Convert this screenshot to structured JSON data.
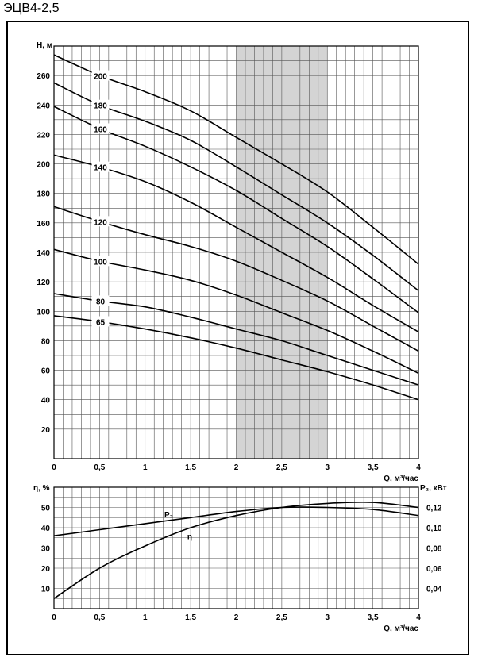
{
  "page_title": "ЭЦВ4-2,5",
  "chart_data": [
    {
      "type": "line",
      "ylabel": "Н, м",
      "xlabel": "Q, м³/час",
      "xlim": [
        0,
        4
      ],
      "ylim": [
        0,
        280
      ],
      "x_ticks": [
        0,
        0.5,
        1,
        1.5,
        2,
        2.5,
        3,
        3.5,
        4
      ],
      "x_tick_labels": [
        "0",
        "0,5",
        "1",
        "1,5",
        "2",
        "2,5",
        "3",
        "3,5",
        "4"
      ],
      "y_ticks": [
        20,
        40,
        60,
        80,
        100,
        120,
        140,
        160,
        180,
        200,
        220,
        240,
        260
      ],
      "y_tick_labels": [
        "20",
        "40",
        "60",
        "80",
        "100",
        "120",
        "140",
        "160",
        "180",
        "200",
        "220",
        "240",
        "260"
      ],
      "grid": true,
      "highlight_range": [
        2,
        3
      ],
      "x": [
        0,
        0.5,
        1,
        1.5,
        2,
        2.5,
        3,
        3.5,
        4
      ],
      "series": [
        {
          "name": "200",
          "values": [
            274,
            260,
            249,
            236,
            218,
            200,
            181,
            157,
            132
          ]
        },
        {
          "name": "180",
          "values": [
            255,
            240,
            229,
            216,
            198,
            179,
            160,
            138,
            114
          ]
        },
        {
          "name": "160",
          "values": [
            239,
            224,
            212,
            198,
            182,
            163,
            144,
            122,
            99
          ]
        },
        {
          "name": "140",
          "values": [
            206,
            198,
            188,
            174,
            157,
            140,
            123,
            104,
            86
          ]
        },
        {
          "name": "120",
          "values": [
            171,
            161,
            152,
            144,
            134,
            121,
            107,
            90,
            73
          ]
        },
        {
          "name": "100",
          "values": [
            142,
            134,
            128,
            121,
            111,
            99,
            87,
            73,
            58
          ]
        },
        {
          "name": "80",
          "values": [
            112,
            107,
            103,
            96,
            88,
            80,
            70,
            60,
            50
          ]
        },
        {
          "name": "65",
          "values": [
            97,
            93,
            88,
            82,
            75,
            67,
            59,
            50,
            40
          ]
        }
      ]
    },
    {
      "type": "line",
      "ylabel": "η, %",
      "y2label": "P₂, кВт",
      "xlabel": "Q, м³/час",
      "xlim": [
        0,
        4
      ],
      "ylim": [
        0,
        60
      ],
      "y2lim": [
        0.02,
        0.14
      ],
      "x_ticks": [
        0,
        0.5,
        1,
        1.5,
        2,
        2.5,
        3,
        3.5,
        4
      ],
      "x_tick_labels": [
        "0",
        "0,5",
        "1",
        "1,5",
        "2",
        "2,5",
        "3",
        "3,5",
        "4"
      ],
      "y_ticks": [
        10,
        20,
        30,
        40,
        50
      ],
      "y_tick_labels": [
        "10",
        "20",
        "30",
        "40",
        "50"
      ],
      "y2_ticks": [
        0.04,
        0.06,
        0.08,
        0.1,
        0.12
      ],
      "y2_tick_labels": [
        "0,04",
        "0,06",
        "0,08",
        "0,10",
        "0,12"
      ],
      "grid": true,
      "x": [
        0,
        0.5,
        1,
        1.5,
        2,
        2.5,
        3,
        3.5,
        4
      ],
      "series": [
        {
          "name": "η",
          "axis": "left",
          "values": [
            5,
            20,
            31,
            40,
            46,
            50,
            52,
            52.5,
            50
          ]
        },
        {
          "name": "P₂",
          "axis": "right",
          "values": [
            0.092,
            0.098,
            0.104,
            0.11,
            0.116,
            0.12,
            0.12,
            0.118,
            0.112
          ]
        }
      ]
    }
  ]
}
